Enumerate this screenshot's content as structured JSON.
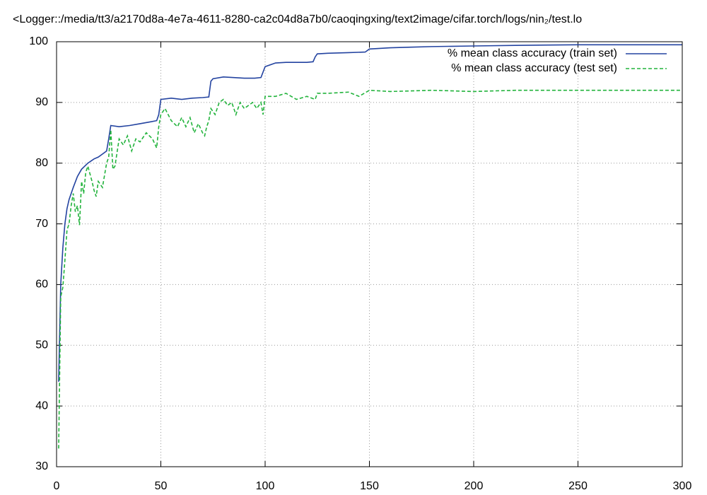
{
  "chart_data": {
    "type": "line",
    "title": "<Logger::/media/tt3/a2170d8a-4e7a-4611-8280-ca2c04d8a7b0/caoqingxing/text2image/cifar.torch/logs/nin₂/test.lo",
    "series": [
      {
        "name": "% mean class accuracy (train set)",
        "color": "#2343a0",
        "dash": false,
        "x": [
          1,
          2,
          3,
          4,
          5,
          6,
          8,
          10,
          12,
          15,
          18,
          20,
          22,
          24,
          25,
          26,
          30,
          35,
          40,
          45,
          48,
          49,
          50,
          55,
          60,
          65,
          70,
          73,
          74,
          75,
          80,
          85,
          90,
          95,
          98,
          99,
          100,
          105,
          110,
          115,
          120,
          123,
          124,
          125,
          130,
          140,
          148,
          150,
          160,
          170,
          180,
          200,
          220,
          250,
          280,
          300
        ],
        "values": [
          44,
          60,
          66,
          70,
          72.5,
          74,
          76,
          77.8,
          79,
          80,
          80.7,
          81,
          81.5,
          82,
          84,
          86.2,
          86,
          86.2,
          86.5,
          86.8,
          87,
          88,
          90.5,
          90.7,
          90.5,
          90.7,
          90.8,
          90.9,
          93.5,
          93.9,
          94.2,
          94.1,
          94,
          94,
          94.1,
          95,
          95.9,
          96.5,
          96.6,
          96.6,
          96.6,
          96.7,
          97.5,
          98,
          98.1,
          98.2,
          98.3,
          98.8,
          99,
          99.1,
          99.2,
          99.3,
          99.4,
          99.5,
          99.5,
          99.5
        ]
      },
      {
        "name": "% mean class accuracy (test set)",
        "color": "#22b33c",
        "dash": true,
        "x": [
          1,
          2,
          3,
          4,
          5,
          6,
          7,
          8,
          9,
          10,
          11,
          12,
          13,
          14,
          15,
          17,
          18,
          19,
          20,
          22,
          24,
          25,
          26,
          27,
          28,
          30,
          32,
          34,
          36,
          38,
          40,
          43,
          46,
          48,
          49,
          50,
          52,
          55,
          58,
          60,
          62,
          64,
          66,
          68,
          70,
          71,
          72,
          73,
          74,
          76,
          78,
          80,
          82,
          84,
          86,
          88,
          90,
          92,
          94,
          96,
          98,
          99,
          100,
          105,
          110,
          115,
          120,
          124,
          125,
          130,
          140,
          145,
          150,
          160,
          180,
          200,
          220,
          250,
          270,
          300
        ],
        "values": [
          33,
          58,
          59.5,
          64,
          69,
          70,
          73,
          75,
          72,
          73,
          69.8,
          77,
          75,
          78.5,
          79.5,
          77,
          75.5,
          74.5,
          77,
          76,
          80,
          81,
          85.5,
          79,
          79.5,
          84,
          83,
          84.5,
          82,
          84,
          83.5,
          85,
          84,
          82.5,
          86,
          88,
          89,
          87,
          86,
          87.5,
          86,
          87.5,
          85,
          86.5,
          85,
          84.5,
          86,
          87,
          89,
          88,
          90,
          90.5,
          89.5,
          90,
          88,
          90,
          89,
          89.5,
          90,
          89,
          90,
          88,
          91,
          91,
          91.5,
          90.5,
          91,
          90.5,
          91.5,
          91.5,
          91.7,
          91,
          92,
          91.8,
          92,
          91.8,
          92,
          92,
          92,
          92
        ]
      }
    ],
    "xlim": [
      0,
      300
    ],
    "xticks": [
      0,
      50,
      100,
      150,
      200,
      250,
      300
    ],
    "ylim": [
      30,
      100
    ],
    "yticks": [
      30,
      40,
      50,
      60,
      70,
      80,
      90,
      100
    ],
    "grid": true,
    "legend": "top-right"
  }
}
